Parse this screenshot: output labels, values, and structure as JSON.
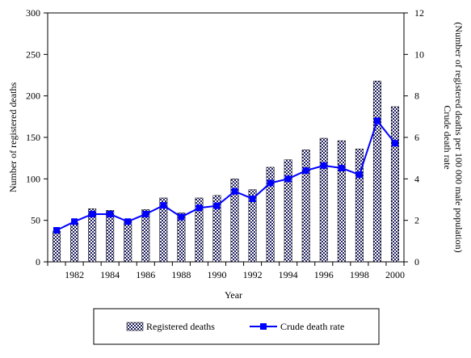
{
  "chart_data": {
    "type": "bar+line",
    "title": "",
    "xlabel": "Year",
    "ylabel_left": "Number of registered deaths",
    "ylabel_right_line1": "Crude death rate",
    "ylabel_right_line2": "(Number of registered deaths per 100 000 male population)",
    "ylim_left": [
      0,
      300
    ],
    "ylim_right": [
      0,
      12
    ],
    "yticks_left": [
      "0",
      "50",
      "100",
      "150",
      "200",
      "250",
      "300"
    ],
    "yticks_right": [
      "0",
      "2",
      "4",
      "6",
      "8",
      "10",
      "12"
    ],
    "categories": [
      "1981",
      "1982",
      "1983",
      "1984",
      "1985",
      "1986",
      "1987",
      "1988",
      "1989",
      "1990",
      "1991",
      "1992",
      "1993",
      "1994",
      "1995",
      "1996",
      "1997",
      "1998",
      "1999",
      "2000"
    ],
    "x_tick_labels": [
      "1982",
      "1984",
      "1986",
      "1988",
      "1990",
      "1992",
      "1994",
      "1996",
      "1998",
      "2000"
    ],
    "series": [
      {
        "name": "Registered deaths",
        "type": "bar",
        "axis": "left",
        "values": [
          37,
          47,
          64,
          62,
          49,
          63,
          77,
          59,
          77,
          80,
          100,
          87,
          114,
          123,
          135,
          149,
          146,
          136,
          218,
          187
        ]
      },
      {
        "name": "Crude death rate",
        "type": "line",
        "axis": "right",
        "color": "#0000ff",
        "values": [
          1.52,
          1.94,
          2.3,
          2.3,
          1.94,
          2.3,
          2.72,
          2.16,
          2.6,
          2.7,
          3.4,
          3.04,
          3.8,
          4.0,
          4.4,
          4.64,
          4.52,
          4.2,
          6.8,
          5.72
        ]
      }
    ],
    "grid": false,
    "legend_position": "bottom"
  }
}
